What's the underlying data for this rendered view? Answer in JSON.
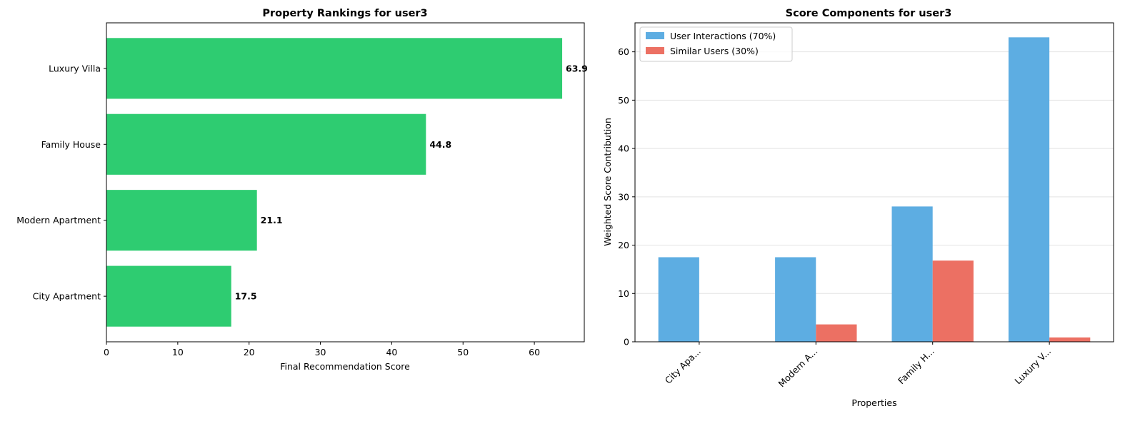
{
  "chart_data": [
    {
      "type": "bar",
      "orientation": "horizontal",
      "title": "Property Rankings for user3",
      "xlabel": "Final Recommendation Score",
      "ylabel": "",
      "categories": [
        "City Apartment",
        "Modern Apartment",
        "Family House",
        "Luxury Villa"
      ],
      "values": [
        17.5,
        21.1,
        44.8,
        63.9
      ],
      "value_labels": [
        "17.5",
        "21.1",
        "44.8",
        "63.9"
      ],
      "xlim": [
        0,
        67
      ],
      "xticks": [
        0,
        10,
        20,
        30,
        40,
        50,
        60
      ],
      "color": "#2ecc71",
      "grid": false
    },
    {
      "type": "bar",
      "orientation": "vertical",
      "title": "Score Components for user3",
      "xlabel": "Properties",
      "ylabel": "Weighted Score Contribution",
      "categories": [
        "City Apa...",
        "Modern A...",
        "Family H...",
        "Luxury V..."
      ],
      "series": [
        {
          "name": "User Interactions (70%)",
          "values": [
            17.5,
            17.5,
            28.0,
            63.0
          ],
          "color": "#5dade2"
        },
        {
          "name": "Similar Users (30%)",
          "values": [
            0,
            3.6,
            16.8,
            0.9
          ],
          "color": "#ec7063"
        }
      ],
      "ylim": [
        0,
        66
      ],
      "yticks": [
        0,
        10,
        20,
        30,
        40,
        50,
        60
      ],
      "grid": "y",
      "legend": "top-left"
    }
  ]
}
